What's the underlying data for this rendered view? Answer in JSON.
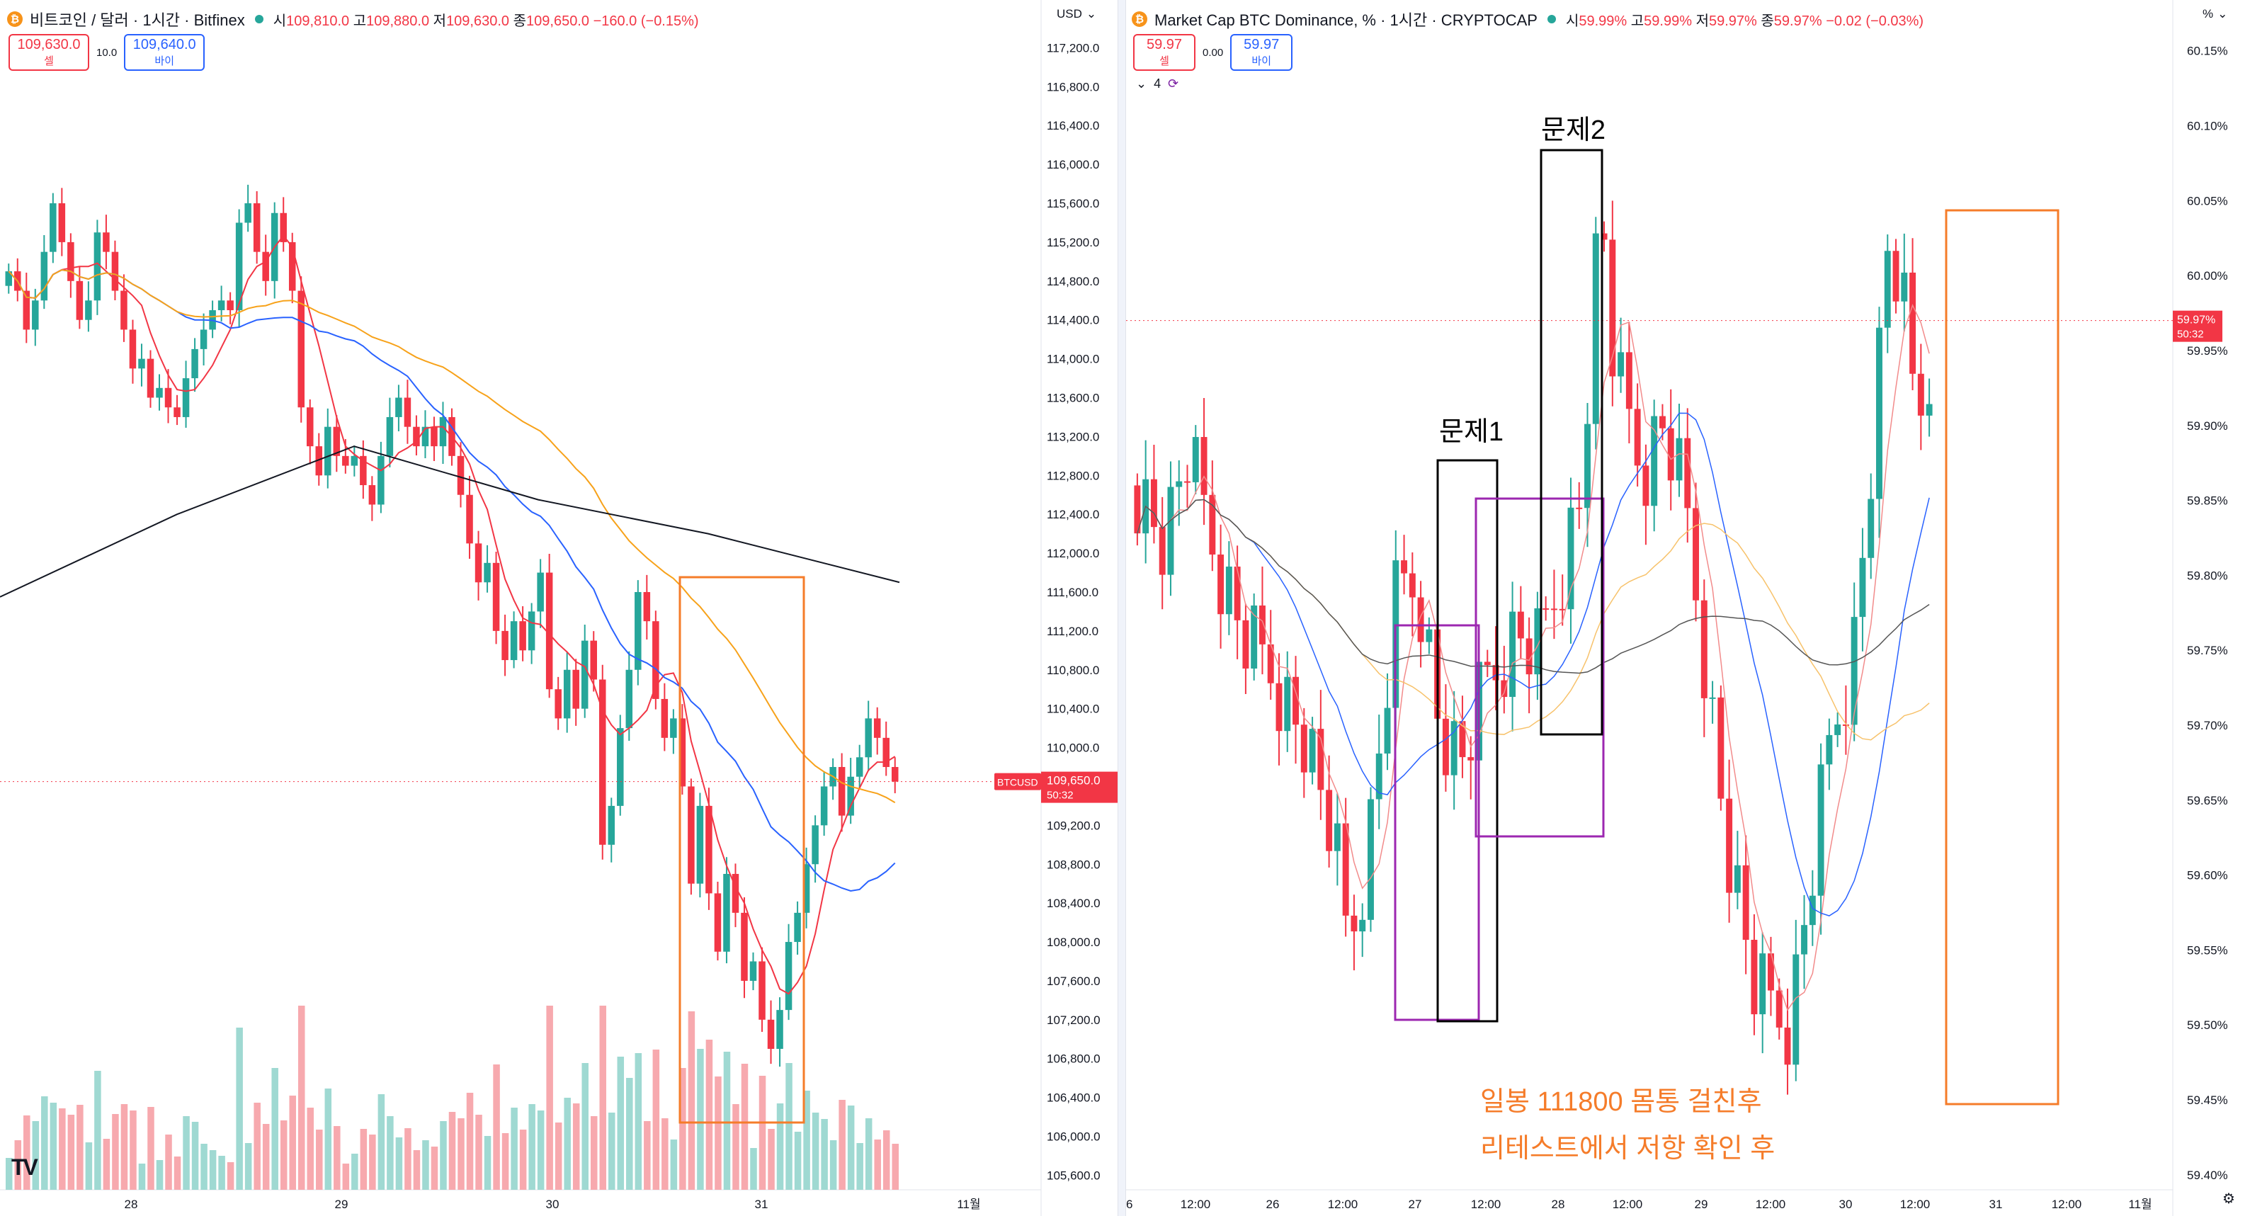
{
  "left": {
    "title": "비트코인 / 달러 · 1시간 · Bitfinex",
    "coin_glyph": "₿",
    "ohlc": {
      "o_label": "시",
      "o": "109,810.0",
      "h_label": "고",
      "h": "109,880.0",
      "l_label": "저",
      "l": "109,630.0",
      "c_label": "종",
      "c": "109,650.0",
      "chg": "−160.0 (−0.15%)"
    },
    "sell": {
      "price": "109,630.0",
      "label": "셀"
    },
    "spread": "10.0",
    "buy": {
      "price": "109,640.0",
      "label": "바이"
    },
    "currency": "USD",
    "price_tag": {
      "ticker": "BTCUSD",
      "price": "109,650.0",
      "timer": "50:32"
    },
    "logo": "TV",
    "colors": {
      "up": "#26a69a",
      "down": "#f23645",
      "ma1": "#f23645",
      "ma2": "#2962ff",
      "ma3": "#f7a21a",
      "ma4": "#131722",
      "box": "#f57c2a"
    }
  },
  "right": {
    "title": "Market Cap BTC Dominance, % · 1시간 · CRYPTOCAP",
    "coin_glyph": "₿",
    "ohlc": {
      "o_label": "시",
      "o": "59.99%",
      "h_label": "고",
      "h": "59.99%",
      "l_label": "저",
      "l": "59.97%",
      "c_label": "종",
      "c": "59.97%",
      "chg": "−0.02 (−0.03%)"
    },
    "sell": {
      "price": "59.97",
      "label": "셀"
    },
    "spread": "0.00",
    "buy": {
      "price": "59.97",
      "label": "바이"
    },
    "currency": "%",
    "indicator_count": "4",
    "price_tag": {
      "price": "59.97%",
      "timer": "50:32"
    },
    "annotations": {
      "problem1": "문제1",
      "problem2": "문제2",
      "note_line1": "일봉 111800 몸통 걸친후",
      "note_line2": "리테스트에서 저항 확인 후"
    },
    "colors": {
      "box_black": "#000000",
      "box_purple": "#9c27b0",
      "box_orange": "#f57c2a",
      "note": "#f57c2a"
    }
  },
  "chart_data": [
    {
      "type": "candlestick",
      "title": "비트코인 / 달러 · 1시간 · Bitfinex",
      "y_axis": [
        "117,200.0",
        "116,800.0",
        "116,400.0",
        "116,000.0",
        "115,600.0",
        "115,200.0",
        "114,800.0",
        "114,400.0",
        "114,000.0",
        "113,600.0",
        "113,200.0",
        "112,800.0",
        "112,400.0",
        "112,000.0",
        "111,600.0",
        "111,200.0",
        "110,800.0",
        "110,400.0",
        "110,000.0",
        "109,600.0",
        "109,200.0",
        "108,800.0",
        "108,400.0",
        "108,000.0",
        "107,600.0",
        "107,200.0",
        "106,800.0",
        "106,400.0",
        "106,000.0",
        "105,600.0"
      ],
      "ylim": [
        105450,
        117400
      ],
      "x_ticks": [
        "28",
        "29",
        "30",
        "31",
        "11월"
      ],
      "last_price": 109650,
      "ohlc_sample": [
        114900,
        114700,
        114300,
        114600,
        115100,
        115600,
        115200,
        114800,
        114400,
        114600,
        115300,
        115100,
        114700,
        114300,
        113900,
        114000,
        113600,
        113700,
        113500,
        113400,
        113800,
        114100,
        114300,
        114500,
        114600,
        114500,
        115400,
        115600,
        115100,
        114800,
        115500,
        115200,
        114700,
        113500,
        113100,
        112800,
        113300,
        113000,
        112900,
        113000,
        112700,
        112500,
        113000,
        113400,
        113600,
        113300,
        113100,
        113300,
        113100,
        113400,
        113000,
        112600,
        112100,
        111700,
        111900,
        111200,
        110900,
        111300,
        111000,
        111400,
        111800,
        110600,
        110300,
        110800,
        110400,
        111100,
        110700,
        109000,
        109400,
        110200,
        110800,
        111600,
        111300,
        110500,
        110100,
        110300,
        109600,
        108600,
        109400,
        108500,
        107900,
        108700,
        108300,
        107600,
        107800,
        107200,
        106900,
        107300,
        108000,
        108300,
        108800,
        109200,
        109600,
        109800,
        109300,
        109700,
        109900,
        110300,
        110100,
        109800,
        109650
      ]
    },
    {
      "type": "candlestick",
      "title": "Market Cap BTC Dominance, % · 1시간 · CRYPTOCAP",
      "y_axis": [
        "60.15%",
        "60.10%",
        "60.05%",
        "60.00%",
        "59.95%",
        "59.90%",
        "59.85%",
        "59.80%",
        "59.75%",
        "59.70%",
        "59.65%",
        "59.60%",
        "59.55%",
        "59.50%",
        "59.45%",
        "59.40%"
      ],
      "ylim": [
        59.39,
        60.165
      ],
      "x_ticks": [
        "6",
        "12:00",
        "26",
        "12:00",
        "27",
        "12:00",
        "28",
        "12:00",
        "29",
        "12:00",
        "30",
        "12:00",
        "31",
        "12:00",
        "11월"
      ],
      "last_price": 59.97
    }
  ]
}
